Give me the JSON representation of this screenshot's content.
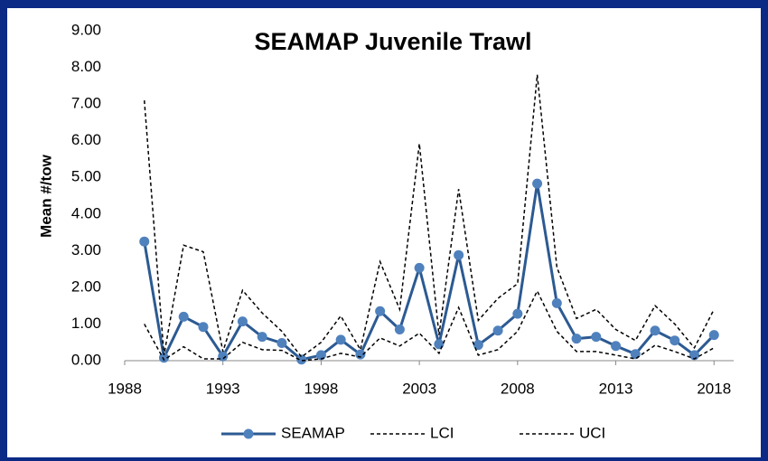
{
  "chart_data": {
    "type": "line",
    "title": "SEAMAP Juvenile Trawl",
    "y_label": "Mean #/tow",
    "x": [
      1989,
      1990,
      1991,
      1992,
      1993,
      1994,
      1995,
      1996,
      1997,
      1998,
      1999,
      2000,
      2001,
      2002,
      2003,
      2004,
      2005,
      2006,
      2007,
      2008,
      2009,
      2010,
      2011,
      2012,
      2013,
      2014,
      2015,
      2016,
      2017,
      2018
    ],
    "series": [
      {
        "name": "SEAMAP",
        "color": "#2c5a92",
        "marker_color": "#4f81bd",
        "dash": false,
        "marker": true,
        "values": [
          3.25,
          0.08,
          1.2,
          0.92,
          0.12,
          1.07,
          0.65,
          0.48,
          0.03,
          0.15,
          0.57,
          0.17,
          1.35,
          0.85,
          2.53,
          0.45,
          2.88,
          0.43,
          0.82,
          1.28,
          4.83,
          1.57,
          0.6,
          0.65,
          0.4,
          0.18,
          0.82,
          0.55,
          0.15,
          0.7
        ]
      },
      {
        "name": "LCI",
        "color": "#000000",
        "dash": true,
        "marker": false,
        "values": [
          1.0,
          0.02,
          0.38,
          0.05,
          0.05,
          0.5,
          0.3,
          0.28,
          0.0,
          0.05,
          0.2,
          0.1,
          0.62,
          0.4,
          0.75,
          0.2,
          1.45,
          0.15,
          0.3,
          0.8,
          1.9,
          0.8,
          0.25,
          0.25,
          0.15,
          0.05,
          0.42,
          0.25,
          0.05,
          0.35
        ]
      },
      {
        "name": "UCI",
        "color": "#000000",
        "dash": true,
        "marker": false,
        "values": [
          7.1,
          0.15,
          3.15,
          2.97,
          0.25,
          1.92,
          1.3,
          0.8,
          0.1,
          0.5,
          1.22,
          0.3,
          2.7,
          1.4,
          5.92,
          0.7,
          4.68,
          1.1,
          1.7,
          2.1,
          7.8,
          2.55,
          1.15,
          1.4,
          0.85,
          0.55,
          1.5,
          1.0,
          0.35,
          1.4
        ]
      }
    ],
    "xlim": [
      1988,
      2019
    ],
    "xticks": [
      1988,
      1993,
      1998,
      2003,
      2008,
      2013,
      2018
    ],
    "ylim": [
      0,
      9
    ],
    "yticks": [
      {
        "value": 0,
        "label": "0.00"
      },
      {
        "value": 1,
        "label": "1.00"
      },
      {
        "value": 2,
        "label": "2.00"
      },
      {
        "value": 3,
        "label": "3.00"
      },
      {
        "value": 4,
        "label": "4.00"
      },
      {
        "value": 5,
        "label": "5.00"
      },
      {
        "value": 6,
        "label": "6.00"
      },
      {
        "value": 7,
        "label": "7.00"
      },
      {
        "value": 8,
        "label": "8.00"
      },
      {
        "value": 9,
        "label": "9.00"
      }
    ],
    "grid": false,
    "legend": "bottom"
  }
}
